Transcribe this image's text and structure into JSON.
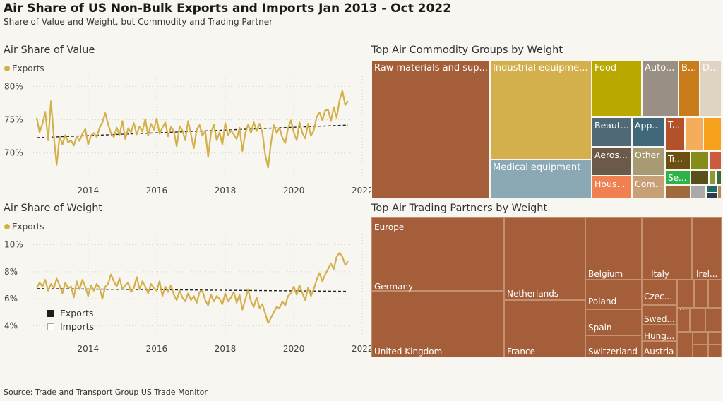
{
  "title": "Air Share of US Non-Bulk Exports and Imports Jan 2013 - Oct 2022",
  "subtitle": "Share of Value and Weight, but Commodity and Trading Partner",
  "source": "Source: Trade and Transport Group US Trade Monitor",
  "colors": {
    "exports": "#d4b04c",
    "trend": "#222222",
    "grid": "#d6d3c8",
    "partner": "#a45f3a"
  },
  "legend": {
    "exports_label": "Exports",
    "imports_label": "Imports"
  },
  "chart_data": [
    {
      "type": "line",
      "title": "Air Share of Value",
      "legend": [
        "Exports"
      ],
      "x_range": [
        "2013-01",
        "2022-10"
      ],
      "x_tick_labels": [
        "2014",
        "2016",
        "2018",
        "2020",
        "2022"
      ],
      "y_tick_labels": [
        "80%",
        "75%",
        "70%"
      ],
      "ylim": [
        67,
        81
      ],
      "series": [
        {
          "name": "Exports",
          "values": [
            75.3,
            73.1,
            74.4,
            76.2,
            71.9,
            77.8,
            72.4,
            68.2,
            72.5,
            71.3,
            72.7,
            71.6,
            71.9,
            71.1,
            72.5,
            71.8,
            72.9,
            73.6,
            71.3,
            72.6,
            73.0,
            72.4,
            73.8,
            74.6,
            76.0,
            74.3,
            73.0,
            72.4,
            73.8,
            72.7,
            74.8,
            72.1,
            73.7,
            73.1,
            74.5,
            72.8,
            74.0,
            73.2,
            75.1,
            72.6,
            74.4,
            73.5,
            75.2,
            72.9,
            73.8,
            74.6,
            72.5,
            73.9,
            73.3,
            71.0,
            74.0,
            73.4,
            71.9,
            74.8,
            72.8,
            70.7,
            73.5,
            74.2,
            72.6,
            73.3,
            69.4,
            73.0,
            74.3,
            71.9,
            73.1,
            71.3,
            74.5,
            72.7,
            73.4,
            72.8,
            72.1,
            73.8,
            70.3,
            72.9,
            74.3,
            73.0,
            74.6,
            73.3,
            74.4,
            73.1,
            69.7,
            67.8,
            71.5,
            74.2,
            73.0,
            73.8,
            72.3,
            71.5,
            73.7,
            74.9,
            73.1,
            71.9,
            74.6,
            73.0,
            72.2,
            74.4,
            72.6,
            73.4,
            75.4,
            76.1,
            74.9,
            76.4,
            76.5,
            74.8,
            76.9,
            75.3,
            77.9,
            79.3,
            77.2,
            77.8
          ],
          "trend": [
            72.3,
            74.2
          ]
        }
      ]
    },
    {
      "type": "line",
      "title": "Air Share of Weight",
      "legend": [
        "Exports"
      ],
      "x_range": [
        "2013-01",
        "2022-10"
      ],
      "x_tick_labels": [
        "2014",
        "2016",
        "2018",
        "2020",
        "2022"
      ],
      "y_tick_labels": [
        "10%",
        "8%",
        "6%",
        "4%"
      ],
      "ylim": [
        3.5,
        10.5
      ],
      "series": [
        {
          "name": "Exports",
          "values": [
            6.8,
            7.2,
            6.9,
            7.4,
            6.6,
            7.1,
            6.8,
            7.5,
            7.0,
            6.4,
            7.2,
            6.8,
            6.9,
            6.1,
            7.3,
            6.7,
            7.4,
            6.9,
            6.2,
            7.0,
            6.6,
            7.1,
            6.8,
            6.0,
            6.9,
            7.1,
            7.8,
            7.3,
            6.9,
            7.5,
            6.7,
            7.0,
            7.2,
            6.5,
            6.8,
            7.6,
            6.7,
            7.3,
            6.9,
            6.4,
            7.1,
            6.8,
            6.6,
            7.3,
            6.2,
            6.9,
            6.5,
            7.0,
            6.3,
            5.9,
            6.6,
            6.1,
            5.8,
            6.4,
            5.9,
            6.2,
            5.7,
            6.5,
            6.6,
            5.9,
            5.5,
            6.3,
            5.8,
            6.2,
            6.0,
            5.6,
            6.4,
            5.8,
            6.1,
            6.5,
            5.7,
            6.3,
            5.2,
            5.9,
            6.7,
            5.8,
            5.4,
            6.1,
            5.3,
            5.6,
            4.9,
            4.2,
            4.6,
            5.0,
            5.4,
            5.3,
            5.8,
            5.5,
            6.2,
            6.4,
            6.9,
            6.3,
            7.0,
            6.4,
            5.9,
            6.8,
            6.2,
            6.7,
            7.4,
            7.9,
            7.3,
            7.8,
            8.2,
            8.6,
            8.2,
            9.1,
            9.4,
            9.1,
            8.5,
            8.8
          ],
          "trend": [
            6.75,
            6.55
          ]
        }
      ]
    },
    {
      "type": "treemap",
      "title": "Top Air Commodity Groups by Weight",
      "items": [
        {
          "label": "Raw materials and sup...",
          "color": "#a45f3a"
        },
        {
          "label": "Industrial equipme...",
          "color": "#d4b04c"
        },
        {
          "label": "Medical equipment",
          "color": "#8aa9b4"
        },
        {
          "label": "Food",
          "color": "#b8a800"
        },
        {
          "label": "Auto...",
          "color": "#9a8f84"
        },
        {
          "label": "B...",
          "color": "#c97c1a"
        },
        {
          "label": "D...",
          "color": "#dfd3c2"
        },
        {
          "label": "Beaut...",
          "color": "#4f6a76"
        },
        {
          "label": "App...",
          "color": "#40687a"
        },
        {
          "label": "T...",
          "color": "#b3512a"
        },
        {
          "label": "",
          "color": "#f4ad5a"
        },
        {
          "label": "",
          "color": "#f7a21c"
        },
        {
          "label": "Aeros...",
          "color": "#6b5a4a"
        },
        {
          "label": "Other",
          "color": "#a89a72"
        },
        {
          "label": "Tr...",
          "color": "#6b5012"
        },
        {
          "label": "",
          "color": "#878b1a"
        },
        {
          "label": "",
          "color": "#cc5a3e"
        },
        {
          "label": "Hous...",
          "color": "#f08050"
        },
        {
          "label": "Com...",
          "color": "#c8a078"
        },
        {
          "label": "Se...",
          "color": "#2eb24a"
        },
        {
          "label": "",
          "color": "#594f1a"
        },
        {
          "label": "",
          "color": "#8a9a3a"
        },
        {
          "label": "",
          "color": "#3c6a3a"
        },
        {
          "label": "",
          "color": "#a06a3a"
        },
        {
          "label": "",
          "color": "#aaaaaa"
        },
        {
          "label": "",
          "color": "#226a6a"
        },
        {
          "label": "",
          "color": "#b88a5a"
        },
        {
          "label": "",
          "color": "#2c3c4a"
        }
      ]
    },
    {
      "type": "treemap",
      "title": "Top Air Trading Partners by Weight",
      "items": [
        {
          "label": "Europe"
        },
        {
          "label": "Germany"
        },
        {
          "label": "United Kingdom"
        },
        {
          "label": "Netherlands"
        },
        {
          "label": "France"
        },
        {
          "label": "Belgium"
        },
        {
          "label": "Italy"
        },
        {
          "label": "Irel..."
        },
        {
          "label": "Poland"
        },
        {
          "label": "Czec..."
        },
        {
          "label": "..."
        },
        {
          "label": "Spain"
        },
        {
          "label": "Swed..."
        },
        {
          "label": "Hung..."
        },
        {
          "label": "Switzerland"
        },
        {
          "label": "Austria"
        }
      ]
    }
  ]
}
